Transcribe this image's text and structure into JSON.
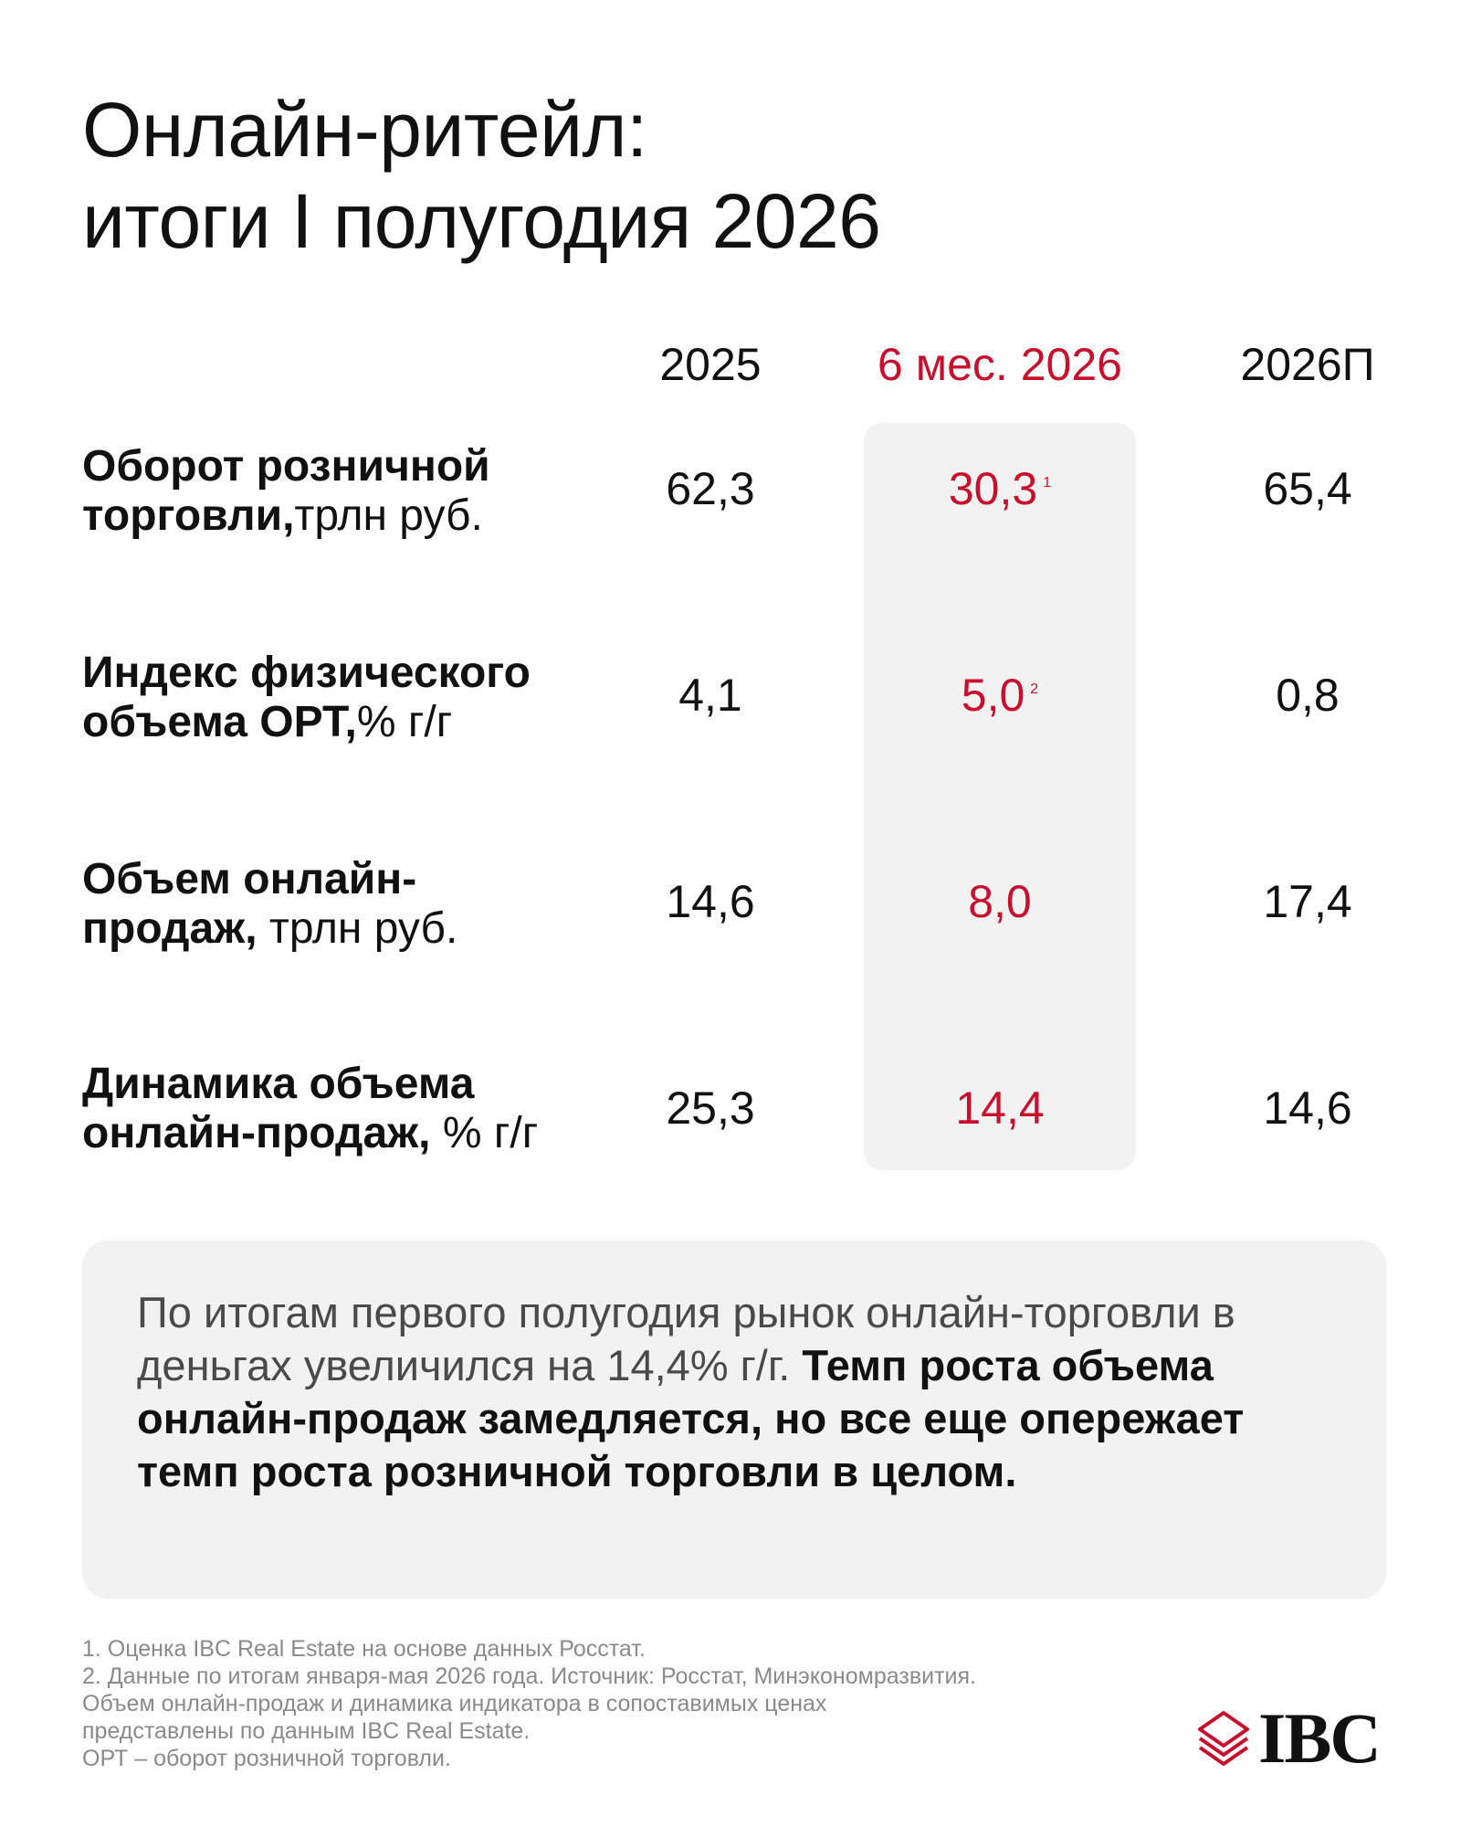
{
  "title": {
    "line1": "Онлайн-ритейл:",
    "line2": "итоги I полугодия 2026"
  },
  "columns": {
    "c2025": "2025",
    "c6m2026": "6 мес. 2026",
    "c2026p": "2026П"
  },
  "rows": [
    {
      "label_strong_1": "Оборот розничной",
      "label_strong_2": "торговли,",
      "label_light_2": "трлн руб.",
      "v2025": "62,3",
      "v6m": "30,3",
      "v6m_note": "1",
      "v2026p": "65,4"
    },
    {
      "label_strong_1": "Индекс физического",
      "label_strong_2": "объема ОРТ,",
      "label_light_2": "% г/г",
      "v2025": "4,1",
      "v6m": "5,0",
      "v6m_note": "2",
      "v2026p": "0,8"
    },
    {
      "label_strong_1": "Объем онлайн-",
      "label_strong_2": "продаж,",
      "label_light_2": " трлн руб.",
      "v2025": "14,6",
      "v6m": "8,0",
      "v2026p": "17,4"
    },
    {
      "label_strong_1": "Динамика объема",
      "label_strong_2": "онлайн-продаж,",
      "label_light_2": " % г/г",
      "v2025": "25,3",
      "v6m": "14,4",
      "v2026p": "14,6"
    }
  ],
  "summary": {
    "light": "По итогам первого полугодия рынок онлайн-торговли в деньгах увеличился на 14,4% г/г.",
    "strong": "Темп роста объема онлайн-продаж замедляется, но все еще опережает темп роста розничной торговли в целом."
  },
  "footnotes": [
    "1. Оценка IBC Real Estate на основе данных Росстат.",
    "2. Данные по итогам января-мая 2026 года. Источник: Росстат, Минэкономразвития.",
    "Объем онлайн-продаж и динамика индикатора в сопоставимых ценах",
    "представлены по данным IBC Real Estate.",
    "ОРТ – оборот розничной торговли."
  ],
  "logo": {
    "text": "IBC",
    "icon": "stacked-layers-icon",
    "color": "#c8102e"
  },
  "colors": {
    "accent": "#c8102e",
    "panel": "#f2f2f2",
    "text": "#111111",
    "muted": "#8a8a8a"
  }
}
